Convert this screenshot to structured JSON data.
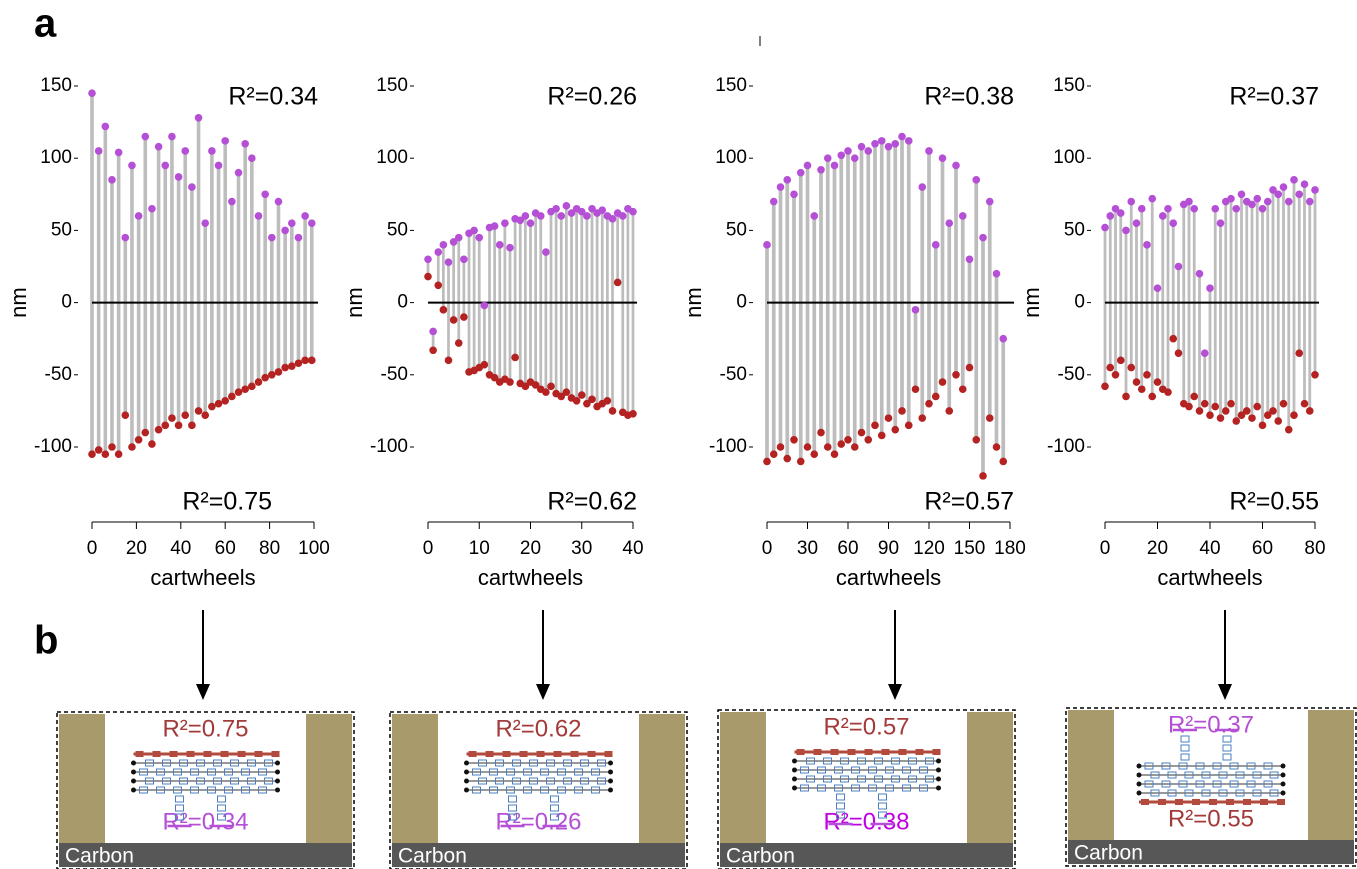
{
  "panel_labels": {
    "a": "a",
    "b": "b"
  },
  "chart_data": [
    {
      "type": "stem",
      "ylabel": "nm",
      "xlabel": "cartwheels",
      "xlim": [
        0,
        100
      ],
      "xticks": [
        0,
        20,
        40,
        60,
        80,
        100
      ],
      "ylim": [
        -100,
        150
      ],
      "yticks": [
        -100,
        -50,
        0,
        50,
        100,
        150
      ],
      "annotations": [
        {
          "text": "R²=0.34",
          "color": "#b44fd6"
        },
        {
          "text": "R²=0.75",
          "color": "#a33a3a"
        }
      ],
      "x": [
        0,
        3,
        6,
        9,
        12,
        15,
        18,
        21,
        24,
        27,
        30,
        33,
        36,
        39,
        42,
        45,
        48,
        51,
        54,
        57,
        60,
        63,
        66,
        69,
        72,
        75,
        78,
        81,
        84,
        87,
        90,
        93,
        96,
        99
      ],
      "series": [
        {
          "color": "#b44fd6",
          "values": [
            145,
            105,
            122,
            85,
            104,
            45,
            95,
            60,
            115,
            65,
            108,
            95,
            115,
            87,
            105,
            80,
            128,
            55,
            105,
            95,
            112,
            70,
            90,
            110,
            100,
            60,
            75,
            45,
            70,
            50,
            55,
            45,
            60,
            55
          ]
        },
        {
          "color": "#b52222",
          "values": [
            -105,
            -102,
            -105,
            -100,
            -105,
            -78,
            -100,
            -95,
            -90,
            -98,
            -88,
            -85,
            -80,
            -85,
            -78,
            -85,
            -75,
            -78,
            -72,
            -70,
            -68,
            -65,
            -62,
            -60,
            -58,
            -55,
            -52,
            -50,
            -48,
            -45,
            -44,
            -42,
            -40,
            -40
          ]
        }
      ]
    },
    {
      "type": "stem",
      "ylabel": "nm",
      "xlabel": "cartwheels",
      "xlim": [
        0,
        40
      ],
      "xticks": [
        0,
        10,
        20,
        30,
        40
      ],
      "ylim": [
        -100,
        150
      ],
      "yticks": [
        -100,
        -50,
        0,
        50,
        100,
        150
      ],
      "annotations": [
        {
          "text": "R²=0.26",
          "color": "#b44fd6"
        },
        {
          "text": "R²=0.62",
          "color": "#a33a3a"
        }
      ],
      "x": [
        0,
        1,
        2,
        3,
        4,
        5,
        6,
        7,
        8,
        9,
        10,
        11,
        12,
        13,
        14,
        15,
        16,
        17,
        18,
        19,
        20,
        21,
        22,
        23,
        24,
        25,
        26,
        27,
        28,
        29,
        30,
        31,
        32,
        33,
        34,
        35,
        36,
        37,
        38,
        39,
        40
      ],
      "series": [
        {
          "color": "#b44fd6",
          "values": [
            30,
            -20,
            35,
            40,
            28,
            42,
            45,
            30,
            48,
            50,
            45,
            -2,
            52,
            53,
            40,
            55,
            38,
            58,
            57,
            60,
            55,
            62,
            60,
            35,
            63,
            65,
            60,
            67,
            62,
            65,
            63,
            60,
            65,
            62,
            64,
            60,
            58,
            62,
            60,
            65,
            63
          ]
        },
        {
          "color": "#b52222",
          "values": [
            18,
            -33,
            12,
            -5,
            -40,
            -12,
            -28,
            -10,
            -48,
            -47,
            -45,
            -43,
            -50,
            -52,
            -55,
            -53,
            -55,
            -38,
            -56,
            -58,
            -55,
            -57,
            -60,
            -62,
            -58,
            -63,
            -65,
            -62,
            -66,
            -68,
            -64,
            -70,
            -67,
            -72,
            -70,
            -68,
            -75,
            14,
            -76,
            -78,
            -77
          ]
        }
      ]
    },
    {
      "type": "stem",
      "ylabel": "nm",
      "xlabel": "cartwheels",
      "xlim": [
        0,
        180
      ],
      "xticks": [
        0,
        30,
        60,
        90,
        120,
        150,
        180
      ],
      "ylim": [
        -100,
        150
      ],
      "yticks": [
        -100,
        -50,
        0,
        50,
        100,
        150
      ],
      "annotations": [
        {
          "text": "R²=0.38",
          "color": "#c000e0"
        },
        {
          "text": "R²=0.57",
          "color": "#a33a3a"
        }
      ],
      "x": [
        0,
        5,
        10,
        15,
        20,
        25,
        30,
        35,
        40,
        45,
        50,
        55,
        60,
        65,
        70,
        75,
        80,
        85,
        90,
        95,
        100,
        105,
        110,
        115,
        120,
        125,
        130,
        135,
        140,
        145,
        150,
        155,
        160,
        165,
        170,
        175
      ],
      "series": [
        {
          "color": "#b44fd6",
          "values": [
            40,
            70,
            80,
            85,
            75,
            90,
            95,
            60,
            92,
            100,
            95,
            102,
            105,
            100,
            108,
            105,
            110,
            112,
            108,
            110,
            115,
            112,
            -5,
            80,
            105,
            40,
            100,
            55,
            95,
            60,
            30,
            85,
            45,
            70,
            20,
            -25
          ]
        },
        {
          "color": "#b52222",
          "values": [
            -110,
            -105,
            -100,
            -108,
            -95,
            -110,
            -100,
            -105,
            -90,
            -100,
            -105,
            -98,
            -95,
            -100,
            -90,
            -95,
            -85,
            -92,
            -80,
            -88,
            -75,
            -85,
            -60,
            -80,
            -70,
            -65,
            -55,
            -75,
            -50,
            -60,
            -45,
            -95,
            -120,
            -80,
            -100,
            -110
          ]
        }
      ]
    },
    {
      "type": "stem",
      "ylabel": "nm",
      "xlabel": "cartwheels",
      "xlim": [
        0,
        80
      ],
      "xticks": [
        0,
        20,
        40,
        60,
        80
      ],
      "ylim": [
        -100,
        150
      ],
      "yticks": [
        -100,
        -50,
        0,
        50,
        100,
        150
      ],
      "annotations": [
        {
          "text": "R²=0.37",
          "color": "#b44fd6"
        },
        {
          "text": "R²=0.55",
          "color": "#a33a3a"
        }
      ],
      "x": [
        0,
        2,
        4,
        6,
        8,
        10,
        12,
        14,
        16,
        18,
        20,
        22,
        24,
        26,
        28,
        30,
        32,
        34,
        36,
        38,
        40,
        42,
        44,
        46,
        48,
        50,
        52,
        54,
        56,
        58,
        60,
        62,
        64,
        66,
        68,
        70,
        72,
        74,
        76,
        78,
        80
      ],
      "series": [
        {
          "color": "#b44fd6",
          "values": [
            52,
            60,
            65,
            62,
            50,
            70,
            55,
            65,
            40,
            72,
            10,
            60,
            65,
            55,
            25,
            68,
            70,
            65,
            20,
            -35,
            10,
            65,
            55,
            70,
            72,
            65,
            75,
            70,
            68,
            72,
            65,
            70,
            78,
            75,
            80,
            70,
            85,
            75,
            82,
            70,
            78
          ]
        },
        {
          "color": "#b52222",
          "values": [
            -58,
            -45,
            -50,
            -40,
            -65,
            -45,
            -55,
            -60,
            -50,
            -65,
            -55,
            -60,
            -62,
            -25,
            -35,
            -70,
            -72,
            -65,
            -75,
            -70,
            -78,
            -72,
            -80,
            -75,
            -70,
            -82,
            -78,
            -75,
            -80,
            -72,
            -85,
            -78,
            -75,
            -82,
            -70,
            -88,
            -78,
            -35,
            -70,
            -75,
            -50
          ]
        }
      ]
    }
  ],
  "diagrams": [
    {
      "top": "R²=0.75",
      "top_color": "#a33a3a",
      "bottom": "R²=0.34",
      "bottom_color": "#b44fd6",
      "base": "Carbon"
    },
    {
      "top": "R²=0.62",
      "top_color": "#a33a3a",
      "bottom": "R²=0.26",
      "bottom_color": "#b44fd6",
      "base": "Carbon"
    },
    {
      "top": "R²=0.57",
      "top_color": "#a33a3a",
      "bottom": "R²=0.38",
      "bottom_color": "#c000e0",
      "base": "Carbon"
    },
    {
      "top": "R²=0.37",
      "top_color": "#b44fd6",
      "bottom": "R²=0.55",
      "bottom_color": "#a33a3a",
      "base": "Carbon"
    }
  ]
}
